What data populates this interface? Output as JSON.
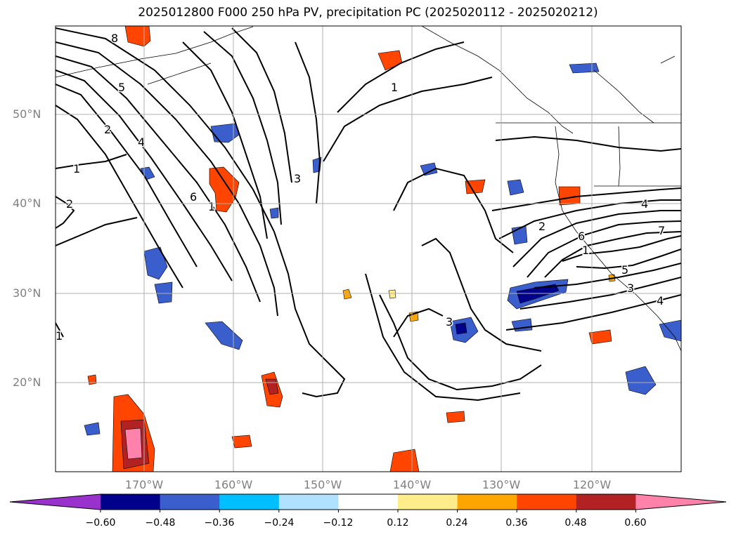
{
  "title": "2025012800 F000 250 hPa PV, precipitation PC (2025020112 - 2025020212)",
  "lat_labels": [
    "50°N",
    "40°N",
    "30°N",
    "20°N"
  ],
  "lon_labels": [
    "170°W",
    "160°W",
    "150°W",
    "140°W",
    "130°W",
    "120°W"
  ],
  "colorbar": {
    "colors": [
      "#9932cc",
      "#00008b",
      "#3a5fcd",
      "#00bfff",
      "#b0e2ff",
      "#ffffff",
      "#ffec8b",
      "#ffa500",
      "#ff4500",
      "#b22222",
      "#ff82ab"
    ],
    "labels": [
      "−0.60",
      "−0.48",
      "−0.36",
      "−0.24",
      "−0.12",
      "0.12",
      "0.24",
      "0.36",
      "0.48",
      "0.60"
    ]
  },
  "contour_labels": [
    "8",
    "5",
    "2",
    "4",
    "1",
    "2",
    "6",
    "1",
    "3",
    "1",
    "2",
    "6",
    "4",
    "7",
    "1",
    "5",
    "3",
    "4",
    "3",
    "1"
  ],
  "colors": {
    "positive_strong": "#ff82ab",
    "positive": "#ff4500",
    "negative": "#3a5fcd",
    "negative_strong": "#00008b",
    "grid": "#b0b0b0"
  }
}
